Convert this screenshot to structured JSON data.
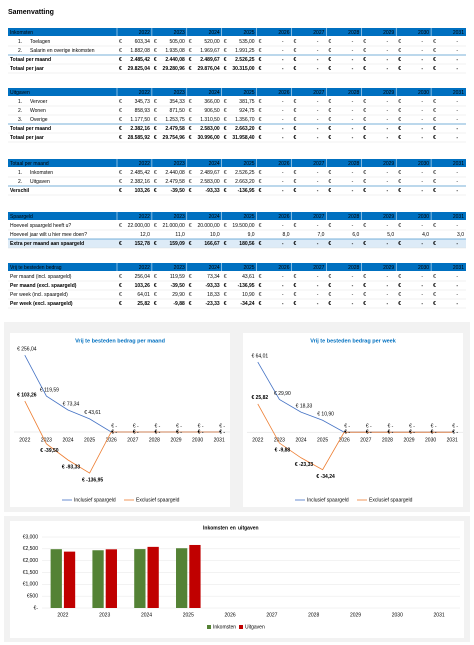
{
  "title": "Samenvatting",
  "tables": [
    {
      "header": "Inkomsten",
      "columns": [
        "2022",
        "2023",
        "2024",
        "2025",
        "2026",
        "2027",
        "2028",
        "2029",
        "2030",
        "2031"
      ],
      "rows": [
        {
          "num": "1.",
          "label": "Toelagen",
          "unit": "€",
          "cells": [
            "603,34",
            "505,00",
            "520,00",
            "535,00",
            "-",
            "-",
            "-",
            "-",
            "-",
            "-"
          ]
        },
        {
          "num": "2.",
          "label": "Salarin en overige inkomsten",
          "unit": "€",
          "cells": [
            "1.882,08",
            "1.935,08",
            "1.969,67",
            "1.991,25",
            "-",
            "-",
            "-",
            "-",
            "-",
            "-"
          ]
        },
        {
          "label": "Totaal per maand",
          "style": "total",
          "unit": "€",
          "cells": [
            "2.485,42",
            "2.440,08",
            "2.489,67",
            "2.526,25",
            "-",
            "-",
            "-",
            "-",
            "-",
            "-"
          ]
        },
        {
          "label": "Totaal per jaar",
          "style": "bold",
          "unit": "€",
          "cells": [
            "29.825,04",
            "29.280,96",
            "29.876,04",
            "30.315,00",
            "-",
            "-",
            "-",
            "-",
            "-",
            "-"
          ]
        }
      ]
    },
    {
      "header": "Uitgaven",
      "columns": [
        "2022",
        "2023",
        "2024",
        "2025",
        "2026",
        "2027",
        "2028",
        "2029",
        "2030",
        "2031"
      ],
      "rows": [
        {
          "num": "1.",
          "label": "Vervoer",
          "unit": "€",
          "cells": [
            "345,73",
            "354,33",
            "366,00",
            "381,75",
            "-",
            "-",
            "-",
            "-",
            "-",
            "-"
          ]
        },
        {
          "num": "2.",
          "label": "Wonen",
          "unit": "€",
          "cells": [
            "858,93",
            "871,50",
            "906,50",
            "924,75",
            "-",
            "-",
            "-",
            "-",
            "-",
            "-"
          ]
        },
        {
          "num": "3.",
          "label": "Overige",
          "unit": "€",
          "cells": [
            "1.177,50",
            "1.253,75",
            "1.310,50",
            "1.356,70",
            "-",
            "-",
            "-",
            "-",
            "-",
            "-"
          ]
        },
        {
          "label": "Totaal per maand",
          "style": "total",
          "unit": "€",
          "cells": [
            "2.382,16",
            "2.479,58",
            "2.583,00",
            "2.663,20",
            "-",
            "-",
            "-",
            "-",
            "-",
            "-"
          ]
        },
        {
          "label": "Totaal per jaar",
          "style": "bold",
          "unit": "€",
          "cells": [
            "28.585,92",
            "29.754,96",
            "30.996,00",
            "31.958,40",
            "-",
            "-",
            "-",
            "-",
            "-",
            "-"
          ]
        }
      ]
    },
    {
      "header": "Totaal per maand",
      "columns": [
        "2022",
        "2023",
        "2024",
        "2025",
        "2026",
        "2027",
        "2028",
        "2029",
        "2030",
        "2031"
      ],
      "rows": [
        {
          "num": "1.",
          "label": "Inkomsten",
          "unit": "€",
          "cells": [
            "2.485,42",
            "2.440,08",
            "2.489,67",
            "2.526,25",
            "-",
            "-",
            "-",
            "-",
            "-",
            "-"
          ]
        },
        {
          "num": "2.",
          "label": "Uitgaven",
          "unit": "€",
          "cells": [
            "2.382,16",
            "2.479,58",
            "2.583,00",
            "2.663,20",
            "-",
            "-",
            "-",
            "-",
            "-",
            "-"
          ]
        },
        {
          "label": "Verschil",
          "style": "total",
          "unit": "€",
          "cells": [
            "103,26",
            "-39,50",
            "-93,33",
            "-136,95",
            "-",
            "-",
            "-",
            "-",
            "-",
            "-"
          ]
        }
      ]
    },
    {
      "header": "Spaargeld",
      "columns": [
        "2022",
        "2023",
        "2024",
        "2025",
        "2026",
        "2027",
        "2028",
        "2029",
        "2030",
        "2031"
      ],
      "rows": [
        {
          "label": "Hoeveel spaargeld heeft u?",
          "unit": "€",
          "cells": [
            "22.000,00",
            "21.000,00",
            "20.000,00",
            "19.500,00",
            "-",
            "-",
            "-",
            "-",
            "-",
            "-"
          ]
        },
        {
          "label": "Hoeveel jaar wilt u hier mee doen?",
          "cells": [
            "12,0",
            "11,0",
            "10,0",
            "9,0",
            "8,0",
            "7,0",
            "6,0",
            "5,0",
            "4,0",
            "3,0"
          ]
        },
        {
          "label": "Extra per maand aan spaargeld",
          "style": "highlight",
          "unit": "€",
          "cells": [
            "152,78",
            "159,09",
            "166,67",
            "180,56",
            "-",
            "-",
            "-",
            "-",
            "-",
            "-"
          ]
        }
      ]
    },
    {
      "header": "Vrij te besteden bedrag",
      "columns": [
        "2022",
        "2023",
        "2024",
        "2025",
        "2026",
        "2027",
        "2028",
        "2029",
        "2030",
        "2031"
      ],
      "rows": [
        {
          "label": "Per maand (incl. spaargeld)",
          "unit": "€",
          "cells": [
            "256,04",
            "119,59",
            "73,34",
            "43,61",
            "-",
            "-",
            "-",
            "-",
            "-",
            "-"
          ]
        },
        {
          "label": "Per maand (excl. spaargeld)",
          "style": "bold",
          "unit": "€",
          "cells": [
            "103,26",
            "-39,50",
            "-93,33",
            "-136,95",
            "-",
            "-",
            "-",
            "-",
            "-",
            "-"
          ]
        },
        {
          "label": "Per week (incl. spaargeld)",
          "unit": "€",
          "cells": [
            "64,01",
            "29,90",
            "18,33",
            "10,90",
            "-",
            "-",
            "-",
            "-",
            "-",
            "-"
          ]
        },
        {
          "label": "Per week (excl. spaargeld)",
          "style": "bold",
          "unit": "€",
          "cells": [
            "25,82",
            "-9,88",
            "-23,33",
            "-34,24",
            "-",
            "-",
            "-",
            "-",
            "-",
            "-"
          ]
        }
      ]
    }
  ],
  "chart_data": [
    {
      "type": "line",
      "title": "Vrij te besteden bedrag per maand",
      "categories": [
        "2022",
        "2023",
        "2024",
        "2025",
        "2026",
        "2027",
        "2028",
        "2029",
        "2030",
        "2031"
      ],
      "ylim": [
        -200,
        300
      ],
      "series": [
        {
          "name": "Inclusief spaargeld",
          "color": "#4472c4",
          "label_color": "#4472c4",
          "values": [
            256.04,
            119.59,
            73.34,
            43.61,
            0,
            0,
            0,
            0,
            0,
            0
          ],
          "value_labels": [
            "€ 256,04",
            "€ 119,59",
            "€ 73,34",
            "€ 43,61",
            "€ -",
            "€ -",
            "€ -",
            "€ -",
            "€ -",
            "€ -"
          ]
        },
        {
          "name": "Exclusief spaargeld",
          "color": "#ed7d31",
          "label_color": "#c00000",
          "values": [
            103.26,
            -39.5,
            -93.33,
            -136.95,
            0,
            0,
            0,
            0,
            0,
            0
          ],
          "value_labels": [
            "€ 103,26",
            "€ -39,50",
            "€ -93,33",
            "€ -136,95",
            "€ -",
            "€ -",
            "€ -",
            "€ -",
            "€ -",
            "€ -"
          ]
        }
      ]
    },
    {
      "type": "line",
      "title": "Vrij te besteden bedrag per week",
      "categories": [
        "2022",
        "2023",
        "2024",
        "2025",
        "2026",
        "2027",
        "2028",
        "2029",
        "2030",
        "2031"
      ],
      "ylim": [
        -50,
        75
      ],
      "series": [
        {
          "name": "Inclusief spaargeld",
          "color": "#4472c4",
          "label_color": "#4472c4",
          "values": [
            64.01,
            29.9,
            18.33,
            10.9,
            0,
            0,
            0,
            0,
            0,
            0
          ],
          "value_labels": [
            "€ 64,01",
            "€ 29,90",
            "€ 18,33",
            "€ 10,90",
            "€ -",
            "€ -",
            "€ -",
            "€ -",
            "€ -",
            "€ -"
          ]
        },
        {
          "name": "Exclusief spaargeld",
          "color": "#ed7d31",
          "label_color": "#c00000",
          "values": [
            25.82,
            -9.88,
            -23.33,
            -34.24,
            0,
            0,
            0,
            0,
            0,
            0
          ],
          "value_labels": [
            "€ 25,82",
            "€ -9,88",
            "€ -23,33",
            "€ -34,24",
            "€ -",
            "€ -",
            "€ -",
            "€ -",
            "€ -",
            "€ -"
          ]
        }
      ]
    },
    {
      "type": "bar",
      "title_parts": [
        "Inkomsten",
        "en",
        "uitgaven"
      ],
      "categories": [
        "2022",
        "2023",
        "2024",
        "2025",
        "2026",
        "2027",
        "2028",
        "2029",
        "2030",
        "2031"
      ],
      "ylim": [
        0,
        3000
      ],
      "yticks": [
        {
          "value": 0,
          "label": "€-"
        },
        {
          "value": 500,
          "label": "€500"
        },
        {
          "value": 1000,
          "label": "€1,000"
        },
        {
          "value": 1500,
          "label": "€1,500"
        },
        {
          "value": 2000,
          "label": "€2,000"
        },
        {
          "value": 2500,
          "label": "€2,500"
        },
        {
          "value": 3000,
          "label": "€3,000"
        }
      ],
      "grid": true,
      "series": [
        {
          "name": "Inkomsten",
          "color": "#548235",
          "values": [
            2485.42,
            2440.08,
            2489.67,
            2526.25,
            0,
            0,
            0,
            0,
            0,
            0
          ]
        },
        {
          "name": "Uitgaven",
          "color": "#c00000",
          "values": [
            2382.16,
            2479.58,
            2583.0,
            2663.2,
            0,
            0,
            0,
            0,
            0,
            0
          ]
        }
      ]
    }
  ]
}
